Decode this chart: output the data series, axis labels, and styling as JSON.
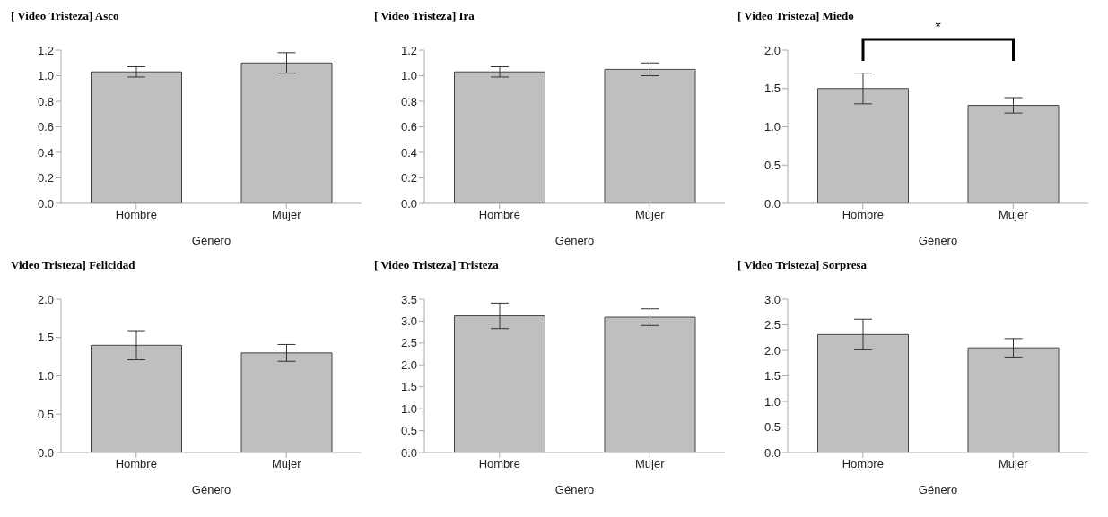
{
  "chart_data": [
    {
      "type": "bar",
      "title": "[ Video Tristeza] Asco",
      "xlabel": "Género",
      "categories": [
        "Hombre",
        "Mujer"
      ],
      "values": [
        1.03,
        1.1
      ],
      "errors": [
        0.04,
        0.08
      ],
      "color": "#bfbfbf",
      "ylim": [
        0,
        1.2
      ],
      "yticks": [
        {
          "value": 0,
          "label": "0.0"
        },
        {
          "value": 0.2,
          "label": "0.2"
        },
        {
          "value": 0.4,
          "label": "0.4"
        },
        {
          "value": 0.6,
          "label": "0.6"
        },
        {
          "value": 0.8,
          "label": "0.8"
        },
        {
          "value": 1,
          "label": "1.0"
        },
        {
          "value": 1.2,
          "label": "1.2"
        }
      ]
    },
    {
      "type": "bar",
      "title": "[ Video Tristeza] Ira",
      "xlabel": "Género",
      "categories": [
        "Hombre",
        "Mujer"
      ],
      "values": [
        1.03,
        1.05
      ],
      "errors": [
        0.04,
        0.05
      ],
      "color": "#bfbfbf",
      "ylim": [
        0,
        1.2
      ],
      "yticks": [
        {
          "value": 0,
          "label": "0.0"
        },
        {
          "value": 0.2,
          "label": "0.2"
        },
        {
          "value": 0.4,
          "label": "0.4"
        },
        {
          "value": 0.6,
          "label": "0.6"
        },
        {
          "value": 0.8,
          "label": "0.8"
        },
        {
          "value": 1,
          "label": "1.0"
        },
        {
          "value": 1.2,
          "label": "1.2"
        }
      ]
    },
    {
      "type": "bar",
      "title": "[ Video Tristeza] Miedo",
      "xlabel": "Género",
      "categories": [
        "Hombre",
        "Mujer"
      ],
      "values": [
        1.5,
        1.28
      ],
      "errors": [
        0.2,
        0.1
      ],
      "color": "#bfbfbf",
      "ylim": [
        0,
        2
      ],
      "yticks": [
        {
          "value": 0,
          "label": "0.0"
        },
        {
          "value": 0.5,
          "label": "0.5"
        },
        {
          "value": 1,
          "label": "1.0"
        },
        {
          "value": 1.5,
          "label": "1.5"
        },
        {
          "value": 2,
          "label": "2.0"
        }
      ],
      "annotations": [
        "*"
      ]
    },
    {
      "type": "bar",
      "title": "Video Tristeza] Felicidad",
      "xlabel": "Género",
      "categories": [
        "Hombre",
        "Mujer"
      ],
      "values": [
        1.4,
        1.3
      ],
      "errors": [
        0.19,
        0.11
      ],
      "color": "#bfbfbf",
      "ylim": [
        0,
        2
      ],
      "yticks": [
        {
          "value": 0,
          "label": "0.0"
        },
        {
          "value": 0.5,
          "label": "0.5"
        },
        {
          "value": 1,
          "label": "1.0"
        },
        {
          "value": 1.5,
          "label": "1.5"
        },
        {
          "value": 2,
          "label": "2.0"
        }
      ]
    },
    {
      "type": "bar",
      "title": "[ Video Tristeza] Tristeza",
      "xlabel": "Género",
      "categories": [
        "Hombre",
        "Mujer"
      ],
      "values": [
        3.12,
        3.09
      ],
      "errors": [
        0.29,
        0.19
      ],
      "color": "#bfbfbf",
      "ylim": [
        0,
        3.5
      ],
      "yticks": [
        {
          "value": 0,
          "label": "0.0"
        },
        {
          "value": 0.5,
          "label": "0.5"
        },
        {
          "value": 1,
          "label": "1.0"
        },
        {
          "value": 1.5,
          "label": "1.5"
        },
        {
          "value": 2,
          "label": "2.0"
        },
        {
          "value": 2.5,
          "label": "2.5"
        },
        {
          "value": 3,
          "label": "3.0"
        },
        {
          "value": 3.5,
          "label": "3.5"
        }
      ]
    },
    {
      "type": "bar",
      "title": "[ Video Tristeza] Sorpresa",
      "xlabel": "Género",
      "categories": [
        "Hombre",
        "Mujer"
      ],
      "values": [
        2.31,
        2.05
      ],
      "errors": [
        0.3,
        0.18
      ],
      "color": "#bfbfbf",
      "ylim": [
        0,
        3
      ],
      "yticks": [
        {
          "value": 0,
          "label": "0.0"
        },
        {
          "value": 0.5,
          "label": "0.5"
        },
        {
          "value": 1,
          "label": "1.0"
        },
        {
          "value": 1.5,
          "label": "1.5"
        },
        {
          "value": 2,
          "label": "2.0"
        },
        {
          "value": 2.5,
          "label": "2.5"
        },
        {
          "value": 3,
          "label": "3.0"
        }
      ]
    }
  ]
}
